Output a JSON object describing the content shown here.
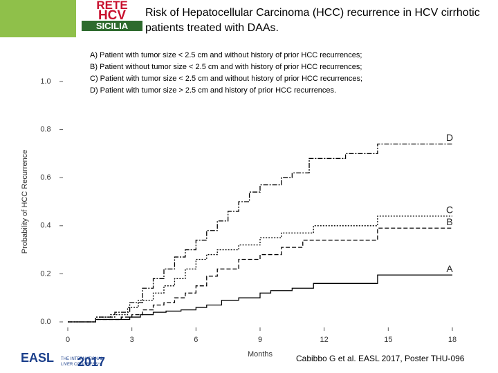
{
  "logos": {
    "rete": [
      "RETE",
      "HCV",
      "SICILIA"
    ],
    "easl": "EASL",
    "congress": [
      "THE INTERNATIONAL",
      "LIVER CONGRESS™"
    ],
    "year": "2017"
  },
  "citation": "Cabibbo G et al. EASL 2017, Poster THU-096",
  "chart_data": {
    "type": "step",
    "title": "Risk of Hepatocellular Carcinoma (HCC) recurrence in HCV cirrhotic patients treated with DAAs.",
    "annotations": [
      "A) Patient with tumor size < 2.5 cm and without history of prior HCC recurrences;",
      "B) Patient without tumor size < 2.5 cm and with history of prior HCC recurrences;",
      "C) Patient with tumor size < 2.5 cm and without history of prior HCC recurrences;",
      "D) Patient with tumor size > 2.5 cm and history of prior HCC recurrences."
    ],
    "x_label": "Months",
    "y_label": "Probability of HCC Recurrence",
    "xlim": [
      0,
      18
    ],
    "ylim": [
      0,
      1.0
    ],
    "xticks": [
      0,
      3,
      6,
      9,
      12,
      15,
      18
    ],
    "yticks": [
      {
        "value": 0,
        "label": "0.0"
      },
      {
        "value": 0.2,
        "label": "0.2"
      },
      {
        "value": 0.4,
        "label": "0.4"
      },
      {
        "value": 0.6,
        "label": "0.6"
      },
      {
        "value": 0.8,
        "label": "0.8"
      },
      {
        "value": 1.0,
        "label": "1.0"
      }
    ],
    "series": [
      {
        "name": "A",
        "color": "#000000",
        "style": "solid",
        "x": [
          0,
          1.3,
          2.9,
          3.4,
          4,
          4.6,
          5.3,
          6,
          6.5,
          7.2,
          8,
          9,
          9.5,
          10.5,
          11.5,
          14.5,
          18
        ],
        "values": [
          0,
          0.01,
          0.02,
          0.03,
          0.04,
          0.045,
          0.05,
          0.06,
          0.07,
          0.09,
          0.1,
          0.12,
          0.13,
          0.14,
          0.16,
          0.195,
          0.195
        ]
      },
      {
        "name": "B",
        "color": "#000000",
        "style": "dashed",
        "x": [
          0,
          1.3,
          2.5,
          3,
          3.5,
          4,
          4.5,
          5,
          5.5,
          6,
          6.5,
          7,
          8,
          9,
          10,
          11,
          14.5,
          18
        ],
        "values": [
          0,
          0.01,
          0.02,
          0.03,
          0.05,
          0.07,
          0.08,
          0.1,
          0.12,
          0.15,
          0.19,
          0.22,
          0.26,
          0.28,
          0.31,
          0.34,
          0.39,
          0.39
        ]
      },
      {
        "name": "C",
        "color": "#000000",
        "style": "dotted",
        "x": [
          0,
          1.3,
          2,
          2.8,
          3.3,
          4,
          4.5,
          5,
          5.5,
          6,
          6.5,
          7,
          8,
          9,
          10,
          11.5,
          14.5,
          18
        ],
        "values": [
          0,
          0.02,
          0.03,
          0.06,
          0.09,
          0.12,
          0.15,
          0.18,
          0.22,
          0.26,
          0.28,
          0.3,
          0.32,
          0.35,
          0.37,
          0.4,
          0.44,
          0.44
        ]
      },
      {
        "name": "D",
        "color": "#000000",
        "style": "dashdot",
        "x": [
          0,
          1.3,
          2.2,
          2.9,
          3.5,
          4,
          4.5,
          5,
          5.5,
          6,
          6.5,
          7,
          7.5,
          8,
          8.5,
          9,
          10,
          10.5,
          11.3,
          13,
          14.5,
          18
        ],
        "values": [
          0,
          0.02,
          0.04,
          0.08,
          0.14,
          0.18,
          0.22,
          0.27,
          0.3,
          0.34,
          0.38,
          0.42,
          0.46,
          0.5,
          0.54,
          0.57,
          0.6,
          0.62,
          0.68,
          0.7,
          0.74,
          0.74
        ]
      }
    ]
  }
}
